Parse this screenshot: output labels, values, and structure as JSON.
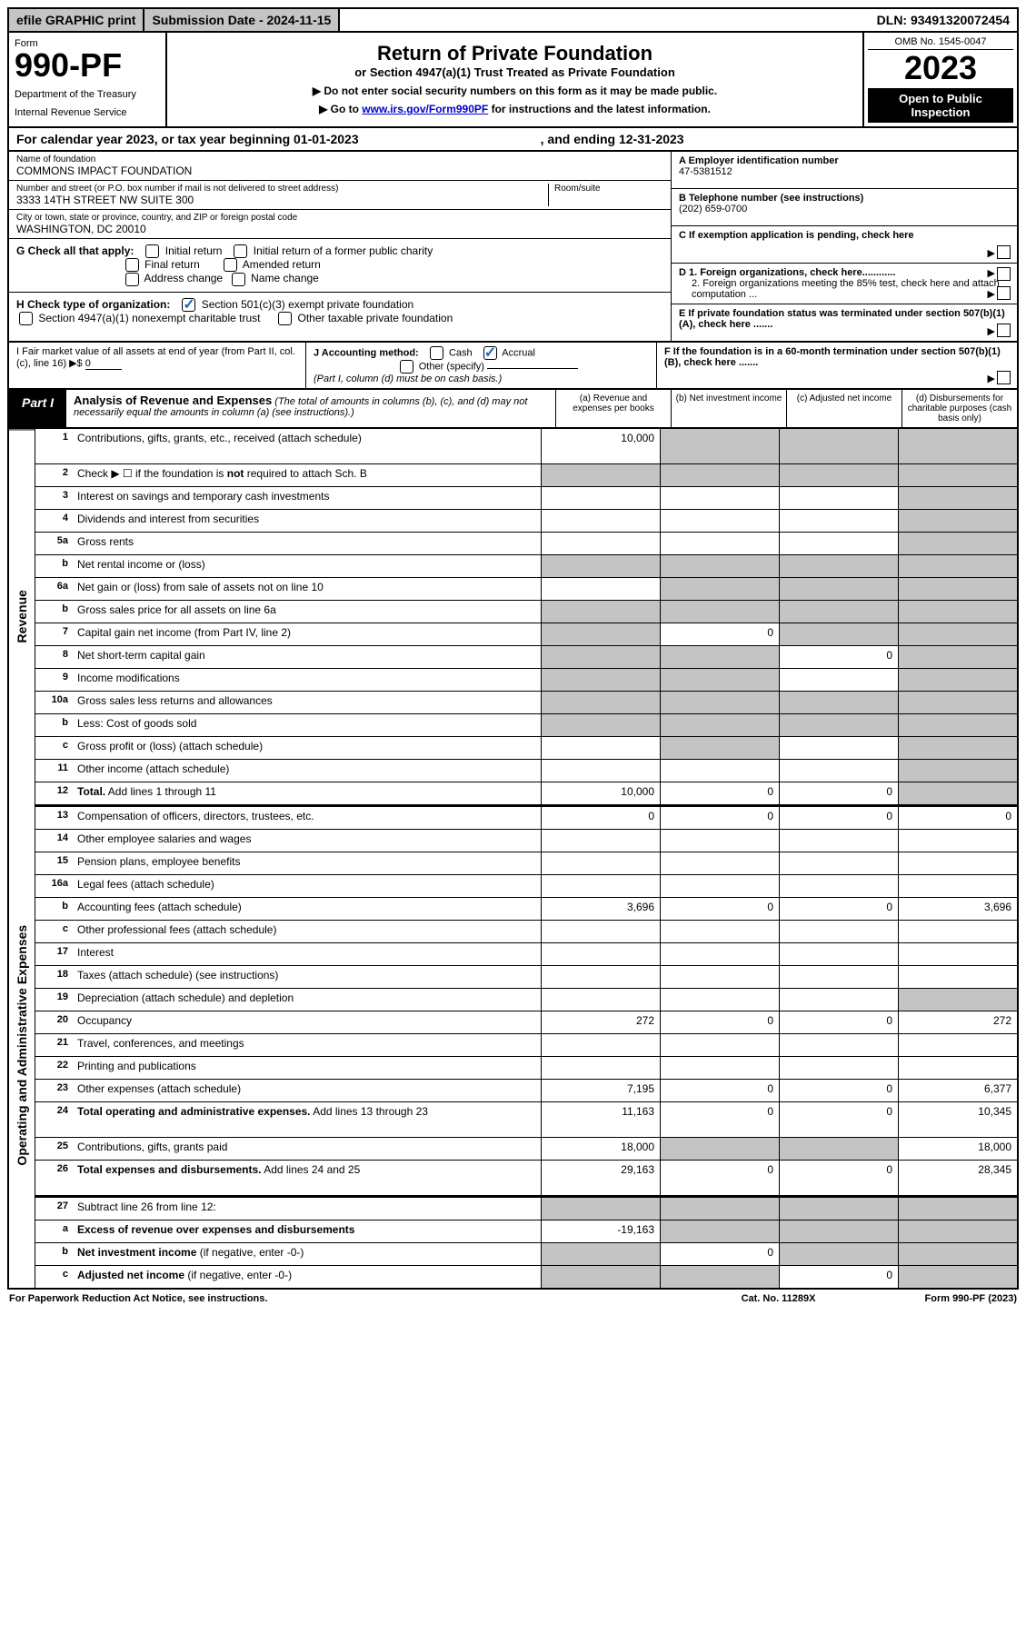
{
  "top": {
    "efile": "efile GRAPHIC print",
    "sub_label": "Submission Date - 2024-11-15",
    "dln": "DLN: 93491320072454"
  },
  "header": {
    "form": "Form",
    "num": "990-PF",
    "dept": "Department of the Treasury",
    "irs": "Internal Revenue Service",
    "title": "Return of Private Foundation",
    "subtitle": "or Section 4947(a)(1) Trust Treated as Private Foundation",
    "instr1": "▶ Do not enter social security numbers on this form as it may be made public.",
    "instr2_pre": "▶ Go to ",
    "instr2_link": "www.irs.gov/Form990PF",
    "instr2_post": " for instructions and the latest information.",
    "omb": "OMB No. 1545-0047",
    "year": "2023",
    "open": "Open to Public Inspection"
  },
  "cal": {
    "text": "For calendar year 2023, or tax year beginning 01-01-2023",
    "end": ", and ending 12-31-2023"
  },
  "id": {
    "name_label": "Name of foundation",
    "name": "COMMONS IMPACT FOUNDATION",
    "addr_label": "Number and street (or P.O. box number if mail is not delivered to street address)",
    "addr": "3333 14TH STREET NW SUITE 300",
    "room_label": "Room/suite",
    "city_label": "City or town, state or province, country, and ZIP or foreign postal code",
    "city": "WASHINGTON, DC  20010",
    "a_label": "A Employer identification number",
    "a_val": "47-5381512",
    "b_label": "B Telephone number (see instructions)",
    "b_val": "(202) 659-0700",
    "c_label": "C If exemption application is pending, check here",
    "d1": "D 1. Foreign organizations, check here............",
    "d2": "2. Foreign organizations meeting the 85% test, check here and attach computation ...",
    "e": "E  If private foundation status was terminated under section 507(b)(1)(A), check here .......",
    "f": "F  If the foundation is in a 60-month termination under section 507(b)(1)(B), check here .......",
    "g_label": "G Check all that apply:",
    "g_opts": [
      "Initial return",
      "Initial return of a former public charity",
      "Final return",
      "Amended return",
      "Address change",
      "Name change"
    ],
    "h_label": "H Check type of organization:",
    "h1": "Section 501(c)(3) exempt private foundation",
    "h2": "Section 4947(a)(1) nonexempt charitable trust",
    "h3": "Other taxable private foundation",
    "i_label": "I Fair market value of all assets at end of year (from Part II, col. (c), line 16) ▶$ ",
    "i_val": "0",
    "j_label": "J Accounting method:",
    "j_cash": "Cash",
    "j_accrual": "Accrual",
    "j_other": "Other (specify)",
    "j_note": "(Part I, column (d) must be on cash basis.)"
  },
  "part1": {
    "tag": "Part I",
    "title": "Analysis of Revenue and Expenses",
    "note": " (The total of amounts in columns (b), (c), and (d) may not necessarily equal the amounts in column (a) (see instructions).)",
    "cols": [
      "(a)   Revenue and expenses per books",
      "(b)   Net investment income",
      "(c)   Adjusted net income",
      "(d)   Disbursements for charitable purposes (cash basis only)"
    ]
  },
  "sections": {
    "revenue": "Revenue",
    "expenses": "Operating and Administrative Expenses"
  },
  "lines": [
    {
      "n": "1",
      "d": "Contributions, gifts, grants, etc., received (attach schedule)",
      "a": "10,000",
      "b": "g",
      "c": "g",
      "e": "g",
      "tall": true
    },
    {
      "n": "2",
      "d": "Check ▶ ☐ if the foundation is <b>not</b> required to attach Sch. B",
      "a": "g",
      "b": "g",
      "c": "g",
      "e": "g"
    },
    {
      "n": "3",
      "d": "Interest on savings and temporary cash investments",
      "a": "",
      "b": "",
      "c": "",
      "e": "g"
    },
    {
      "n": "4",
      "d": "Dividends and interest from securities",
      "a": "",
      "b": "",
      "c": "",
      "e": "g"
    },
    {
      "n": "5a",
      "d": "Gross rents",
      "a": "",
      "b": "",
      "c": "",
      "e": "g"
    },
    {
      "n": "b",
      "d": "Net rental income or (loss)",
      "a": "g",
      "b": "g",
      "c": "g",
      "e": "g"
    },
    {
      "n": "6a",
      "d": "Net gain or (loss) from sale of assets not on line 10",
      "a": "",
      "b": "g",
      "c": "g",
      "e": "g"
    },
    {
      "n": "b",
      "d": "Gross sales price for all assets on line 6a",
      "a": "g",
      "b": "g",
      "c": "g",
      "e": "g"
    },
    {
      "n": "7",
      "d": "Capital gain net income (from Part IV, line 2)",
      "a": "g",
      "b": "0",
      "c": "g",
      "e": "g"
    },
    {
      "n": "8",
      "d": "Net short-term capital gain",
      "a": "g",
      "b": "g",
      "c": "0",
      "e": "g"
    },
    {
      "n": "9",
      "d": "Income modifications",
      "a": "g",
      "b": "g",
      "c": "",
      "e": "g"
    },
    {
      "n": "10a",
      "d": "Gross sales less returns and allowances",
      "a": "g",
      "b": "g",
      "c": "g",
      "e": "g"
    },
    {
      "n": "b",
      "d": "Less: Cost of goods sold",
      "a": "g",
      "b": "g",
      "c": "g",
      "e": "g"
    },
    {
      "n": "c",
      "d": "Gross profit or (loss) (attach schedule)",
      "a": "",
      "b": "g",
      "c": "",
      "e": "g"
    },
    {
      "n": "11",
      "d": "Other income (attach schedule)",
      "a": "",
      "b": "",
      "c": "",
      "e": "g"
    },
    {
      "n": "12",
      "d": "<b>Total.</b> Add lines 1 through 11",
      "a": "10,000",
      "b": "0",
      "c": "0",
      "e": "g"
    }
  ],
  "exp_lines": [
    {
      "n": "13",
      "d": "Compensation of officers, directors, trustees, etc.",
      "a": "0",
      "b": "0",
      "c": "0",
      "e": "0"
    },
    {
      "n": "14",
      "d": "Other employee salaries and wages",
      "a": "",
      "b": "",
      "c": "",
      "e": ""
    },
    {
      "n": "15",
      "d": "Pension plans, employee benefits",
      "a": "",
      "b": "",
      "c": "",
      "e": ""
    },
    {
      "n": "16a",
      "d": "Legal fees (attach schedule)",
      "a": "",
      "b": "",
      "c": "",
      "e": ""
    },
    {
      "n": "b",
      "d": "Accounting fees (attach schedule)",
      "a": "3,696",
      "b": "0",
      "c": "0",
      "e": "3,696"
    },
    {
      "n": "c",
      "d": "Other professional fees (attach schedule)",
      "a": "",
      "b": "",
      "c": "",
      "e": ""
    },
    {
      "n": "17",
      "d": "Interest",
      "a": "",
      "b": "",
      "c": "",
      "e": ""
    },
    {
      "n": "18",
      "d": "Taxes (attach schedule) (see instructions)",
      "a": "",
      "b": "",
      "c": "",
      "e": ""
    },
    {
      "n": "19",
      "d": "Depreciation (attach schedule) and depletion",
      "a": "",
      "b": "",
      "c": "",
      "e": "g"
    },
    {
      "n": "20",
      "d": "Occupancy",
      "a": "272",
      "b": "0",
      "c": "0",
      "e": "272"
    },
    {
      "n": "21",
      "d": "Travel, conferences, and meetings",
      "a": "",
      "b": "",
      "c": "",
      "e": ""
    },
    {
      "n": "22",
      "d": "Printing and publications",
      "a": "",
      "b": "",
      "c": "",
      "e": ""
    },
    {
      "n": "23",
      "d": "Other expenses (attach schedule)",
      "a": "7,195",
      "b": "0",
      "c": "0",
      "e": "6,377"
    },
    {
      "n": "24",
      "d": "<b>Total operating and administrative expenses.</b> Add lines 13 through 23",
      "a": "11,163",
      "b": "0",
      "c": "0",
      "e": "10,345",
      "tall": true
    },
    {
      "n": "25",
      "d": "Contributions, gifts, grants paid",
      "a": "18,000",
      "b": "g",
      "c": "g",
      "e": "18,000"
    },
    {
      "n": "26",
      "d": "<b>Total expenses and disbursements.</b> Add lines 24 and 25",
      "a": "29,163",
      "b": "0",
      "c": "0",
      "e": "28,345",
      "tall": true
    }
  ],
  "net_lines": [
    {
      "n": "27",
      "d": "Subtract line 26 from line 12:",
      "a": "g",
      "b": "g",
      "c": "g",
      "e": "g"
    },
    {
      "n": "a",
      "d": "<b>Excess of revenue over expenses and disbursements</b>",
      "a": "-19,163",
      "b": "g",
      "c": "g",
      "e": "g"
    },
    {
      "n": "b",
      "d": "<b>Net investment income</b> (if negative, enter -0-)",
      "a": "g",
      "b": "0",
      "c": "g",
      "e": "g"
    },
    {
      "n": "c",
      "d": "<b>Adjusted net income</b> (if negative, enter -0-)",
      "a": "g",
      "b": "g",
      "c": "0",
      "e": "g"
    }
  ],
  "footer": {
    "left": "For Paperwork Reduction Act Notice, see instructions.",
    "mid": "Cat. No. 11289X",
    "right": "Form 990-PF (2023)"
  }
}
